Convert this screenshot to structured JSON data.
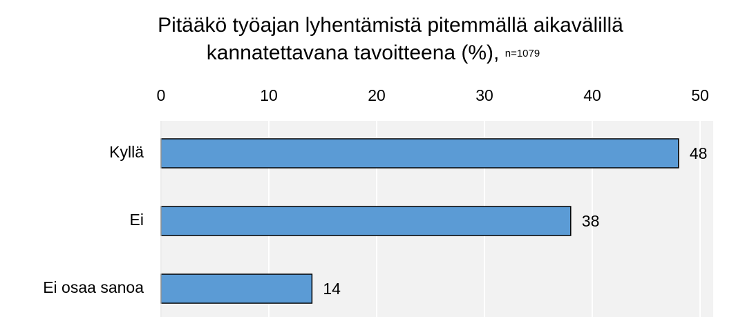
{
  "chart_data": {
    "type": "barh",
    "title": [
      "Pitääkö työajan lyhentämistä pitemmällä aikavälillä",
      "kannatettavana  tavoitteena (%),"
    ],
    "subtitle": "n=1079",
    "categories": [
      "Kyllä",
      "Ei",
      "Ei osaa sanoa"
    ],
    "values": [
      48,
      38,
      14
    ],
    "color": "#5b9bd5",
    "xlim": [
      0,
      50
    ],
    "xticks": [
      0,
      10,
      20,
      30,
      40,
      50
    ],
    "grid": true
  }
}
